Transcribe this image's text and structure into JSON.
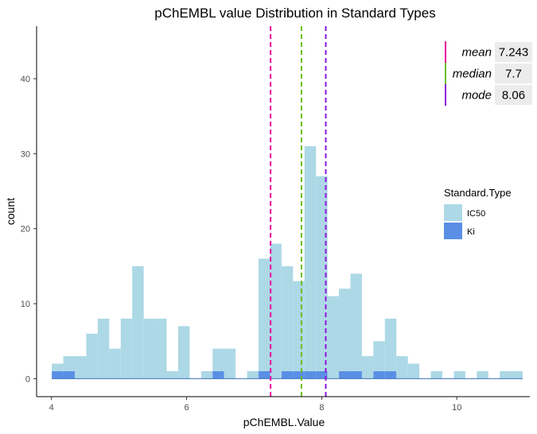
{
  "chart_data": {
    "type": "bar",
    "subtype": "stacked-histogram",
    "title": "pChEMBL value Distribution in Standard Types",
    "xlabel": "pChEMBL.Value",
    "ylabel": "count",
    "xlim": [
      3.78,
      11.08
    ],
    "ylim": [
      -2.4,
      47.0
    ],
    "x_ticks": [
      4,
      6,
      8,
      10
    ],
    "y_ticks": [
      0,
      10,
      20,
      30,
      40
    ],
    "grid": false,
    "bin_start": 4.0,
    "bin_width": 0.17,
    "x": [
      4.09,
      4.26,
      4.43,
      4.6,
      4.77,
      4.94,
      5.11,
      5.28,
      5.45,
      5.62,
      5.79,
      5.96,
      6.13,
      6.3,
      6.47,
      6.64,
      6.81,
      6.98,
      7.15,
      7.32,
      7.49,
      7.66,
      7.83,
      8.0,
      8.17,
      8.34,
      8.51,
      8.68,
      8.85,
      9.02,
      9.19,
      9.36,
      9.53,
      9.7,
      9.87,
      10.04,
      10.21,
      10.38,
      10.55,
      10.72,
      10.89
    ],
    "series": [
      {
        "name": "IC50",
        "color": "#add8e6",
        "values": [
          1,
          2,
          3,
          6,
          8,
          4,
          8,
          15,
          8,
          8,
          1,
          7,
          0,
          1,
          3,
          4,
          0,
          1,
          15,
          18,
          14,
          12,
          30,
          26,
          11,
          11,
          13,
          3,
          4,
          7,
          3,
          2,
          0,
          1,
          0,
          1,
          0,
          1,
          0,
          1,
          1
        ]
      },
      {
        "name": "Ki",
        "color": "#5b8fe6",
        "values": [
          1,
          1,
          0,
          0,
          0,
          0,
          0,
          0,
          0,
          0,
          0,
          0,
          0,
          0,
          1,
          0,
          0,
          0,
          1,
          0,
          1,
          1,
          1,
          1,
          0,
          1,
          1,
          0,
          1,
          1,
          0,
          0,
          0,
          0,
          0,
          0,
          0,
          0,
          0,
          0,
          0
        ]
      }
    ],
    "baseline_color": "#3a6fb5",
    "vlines": [
      {
        "label": "mean",
        "value": 7.243,
        "display": "7.243",
        "color": "#e6009e"
      },
      {
        "label": "median",
        "value": 7.7,
        "display": "7.7",
        "color": "#6bbf1f"
      },
      {
        "label": "mode",
        "value": 8.06,
        "display": "8.06",
        "color": "#8a17d6"
      }
    ],
    "legend": {
      "title": "Standard.Type",
      "position": "right"
    },
    "stats_table_position": "top-right"
  }
}
